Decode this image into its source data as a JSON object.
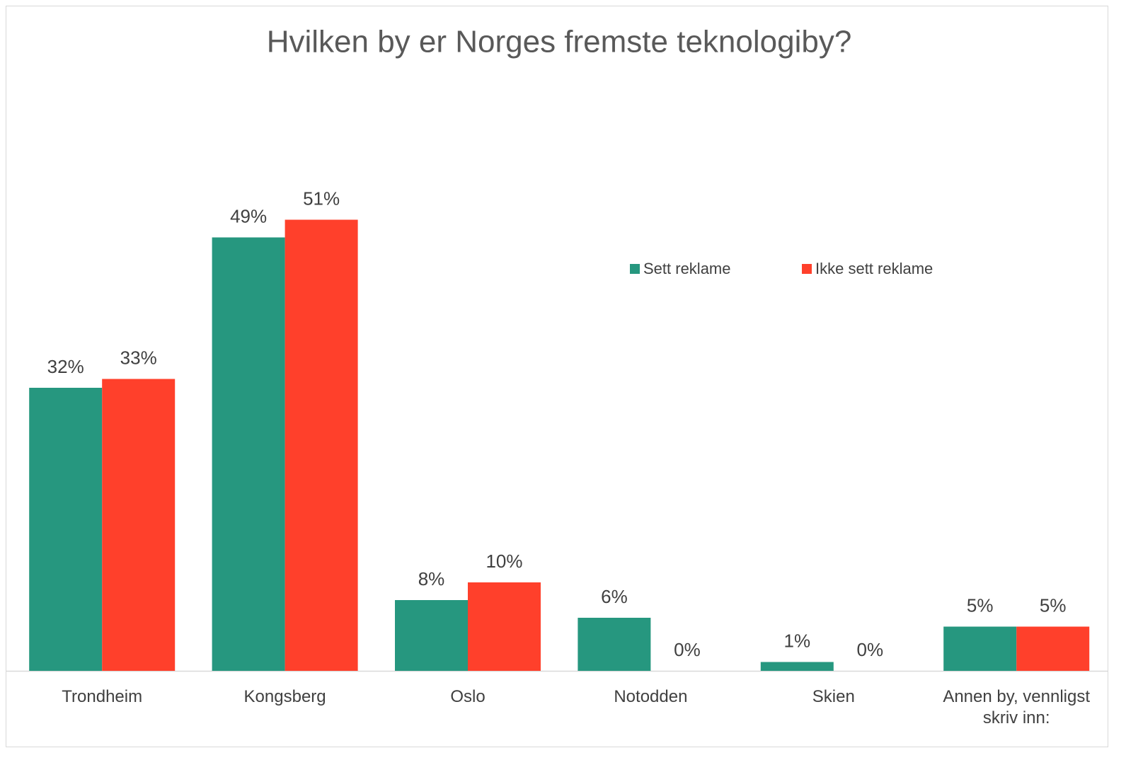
{
  "chart_data": {
    "type": "bar",
    "title": "Hvilken by er Norges fremste teknologiby?",
    "categories": [
      "Trondheim",
      "Kongsberg",
      "Oslo",
      "Notodden",
      "Skien",
      "Annen by, vennligst skriv inn:"
    ],
    "series": [
      {
        "name": "Sett reklame",
        "color": "#26977f",
        "values": [
          32,
          49,
          8,
          6,
          1,
          5
        ],
        "value_labels": [
          "32%",
          "49%",
          "8%",
          "6%",
          "1%",
          "5%"
        ]
      },
      {
        "name": "Ikke sett reklame",
        "color": "#ff402b",
        "values": [
          33,
          51,
          10,
          0,
          0,
          5
        ],
        "value_labels": [
          "33%",
          "51%",
          "10%",
          "0%",
          "0%",
          "5%"
        ]
      }
    ],
    "grid": false
  }
}
